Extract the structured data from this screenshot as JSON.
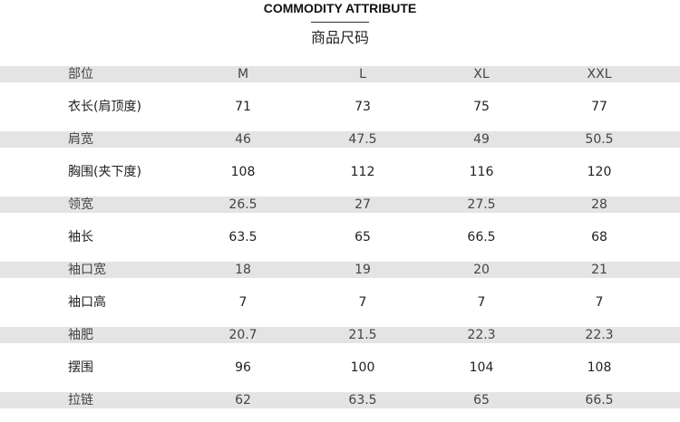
{
  "header": {
    "title": "COMMODITY ATTRIBUTE",
    "subtitle": "商品尺码"
  },
  "table": {
    "columns": [
      "部位",
      "M",
      "L",
      "XL",
      "XXL"
    ],
    "rows": [
      [
        "衣长(肩顶度)",
        71,
        73,
        75,
        77
      ],
      [
        "肩宽",
        46,
        47.5,
        49,
        50.5
      ],
      [
        "胸围(夹下度)",
        108,
        112,
        116,
        120
      ],
      [
        "领宽",
        26.5,
        27,
        27.5,
        28
      ],
      [
        "袖长",
        63.5,
        65,
        66.5,
        68
      ],
      [
        "袖口宽",
        18,
        19,
        20,
        21
      ],
      [
        "袖口高",
        7,
        7,
        7,
        7
      ],
      [
        "袖肥",
        20.7,
        21.5,
        22.3,
        22.3
      ],
      [
        "摆围",
        96,
        100,
        104,
        108
      ],
      [
        "拉链",
        62,
        63.5,
        65,
        66.5
      ]
    ]
  }
}
